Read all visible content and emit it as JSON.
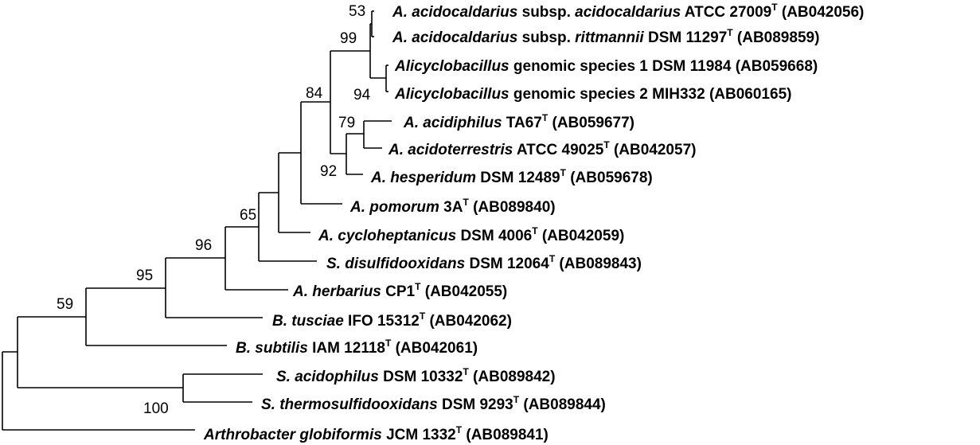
{
  "tree": {
    "taxa": [
      {
        "id": "t1",
        "name": "A. acidocaldarius",
        "rank": "subsp.",
        "subname": "acidocaldarius",
        "strain": "ATCC 27009",
        "type_mark": "T",
        "accession": "(AB042056)"
      },
      {
        "id": "t2",
        "name": "A. acidocaldarius",
        "rank": "subsp.",
        "subname": "rittmannii",
        "strain": "DSM 11297",
        "type_mark": "T",
        "accession": "(AB089859)"
      },
      {
        "id": "t3",
        "name": "Alicyclobacillus",
        "strain": "genomic species 1 DSM 11984",
        "accession": "(AB059668)"
      },
      {
        "id": "t4",
        "name": "Alicyclobacillus",
        "strain": "genomic species 2 MIH332",
        "accession": "(AB060165)"
      },
      {
        "id": "t5",
        "name": "A. acidiphilus",
        "strain": "TA67",
        "type_mark": "T",
        "accession": "(AB059677)"
      },
      {
        "id": "t6",
        "name": "A. acidoterrestris",
        "strain": "ATCC 49025",
        "type_mark": "T",
        "accession": "(AB042057)"
      },
      {
        "id": "t7",
        "name": "A. hesperidum",
        "strain": "DSM 12489",
        "type_mark": "T",
        "accession": "(AB059678)"
      },
      {
        "id": "t8",
        "name": "A. pomorum",
        "strain": "3A",
        "type_mark": "T",
        "accession": "(AB089840)"
      },
      {
        "id": "t9",
        "name": "A. cycloheptanicus",
        "strain": "DSM 4006",
        "type_mark": "T",
        "accession": "(AB042059)"
      },
      {
        "id": "t10",
        "name": "S. disulfidooxidans",
        "strain": "DSM 12064",
        "type_mark": "T",
        "accession": "(AB089843)"
      },
      {
        "id": "t11",
        "name": "A. herbarius",
        "strain": "CP1",
        "type_mark": "T",
        "accession": "(AB042055)"
      },
      {
        "id": "t12",
        "name": "B. tusciae",
        "strain": "IFO 15312",
        "type_mark": "T",
        "accession": "(AB042062)"
      },
      {
        "id": "t13",
        "name": "B. subtilis",
        "strain": "IAM 12118",
        "type_mark": "T",
        "accession": "(AB042061)"
      },
      {
        "id": "t14",
        "name": "S. acidophilus",
        "strain": "DSM 10332",
        "type_mark": "T",
        "accession": "(AB089842)"
      },
      {
        "id": "t15",
        "name": "S. thermosulfidooxidans",
        "strain": "DSM 9293",
        "type_mark": "T",
        "accession": "(AB089844)"
      },
      {
        "id": "t16",
        "name": "Arthrobacter globiformis",
        "strain": "JCM 1332",
        "type_mark": "T",
        "accession": "(AB089841)"
      }
    ],
    "bootstrap": [
      {
        "id": "b53",
        "value": "53"
      },
      {
        "id": "b99",
        "value": "99"
      },
      {
        "id": "b94",
        "value": "94"
      },
      {
        "id": "b84",
        "value": "84"
      },
      {
        "id": "b79",
        "value": "79"
      },
      {
        "id": "b92",
        "value": "92"
      },
      {
        "id": "b65",
        "value": "65"
      },
      {
        "id": "b96",
        "value": "96"
      },
      {
        "id": "b95",
        "value": "95"
      },
      {
        "id": "b59",
        "value": "59"
      },
      {
        "id": "b100",
        "value": "100"
      }
    ]
  }
}
